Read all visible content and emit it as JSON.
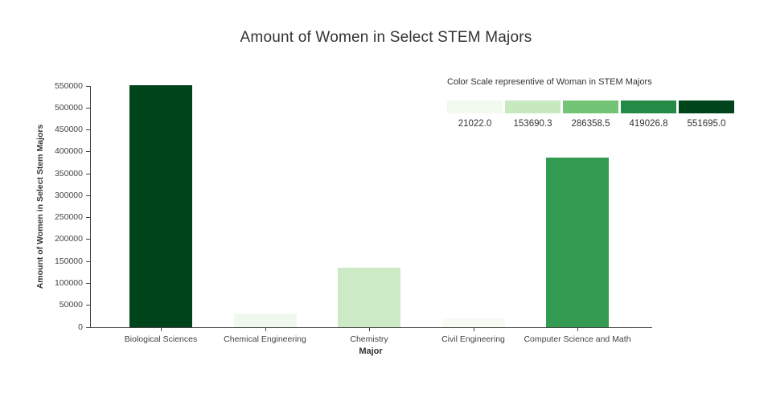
{
  "chart_data": {
    "type": "bar",
    "title": "Amount of Women in Select STEM Majors",
    "xlabel": "Major",
    "ylabel": "Amount of Women in Select Stem Majors",
    "categories": [
      "Biological Sciences",
      "Chemical Engineering",
      "Chemistry",
      "Civil Engineering",
      "Computer Science and Math"
    ],
    "values": [
      551695,
      32000,
      135000,
      21022,
      386000
    ],
    "bar_colors": [
      "#00441b",
      "#f0f9ed",
      "#cdeac6",
      "#f6fbf4",
      "#329b51"
    ],
    "ylim": [
      0,
      550000
    ],
    "yticks": [
      0,
      50000,
      100000,
      150000,
      200000,
      250000,
      300000,
      350000,
      400000,
      450000,
      500000,
      550000
    ],
    "grid": false,
    "legend": {
      "title": "Color Scale representive of Woman in STEM Majors",
      "position": "top-right",
      "swatches": [
        {
          "color": "#f2faef",
          "label": "21022.0"
        },
        {
          "color": "#c7e9c0",
          "label": "153690.3"
        },
        {
          "color": "#74c476",
          "label": "286358.5"
        },
        {
          "color": "#238b45",
          "label": "419026.8"
        },
        {
          "color": "#00441b",
          "label": "551695.0"
        }
      ]
    }
  }
}
